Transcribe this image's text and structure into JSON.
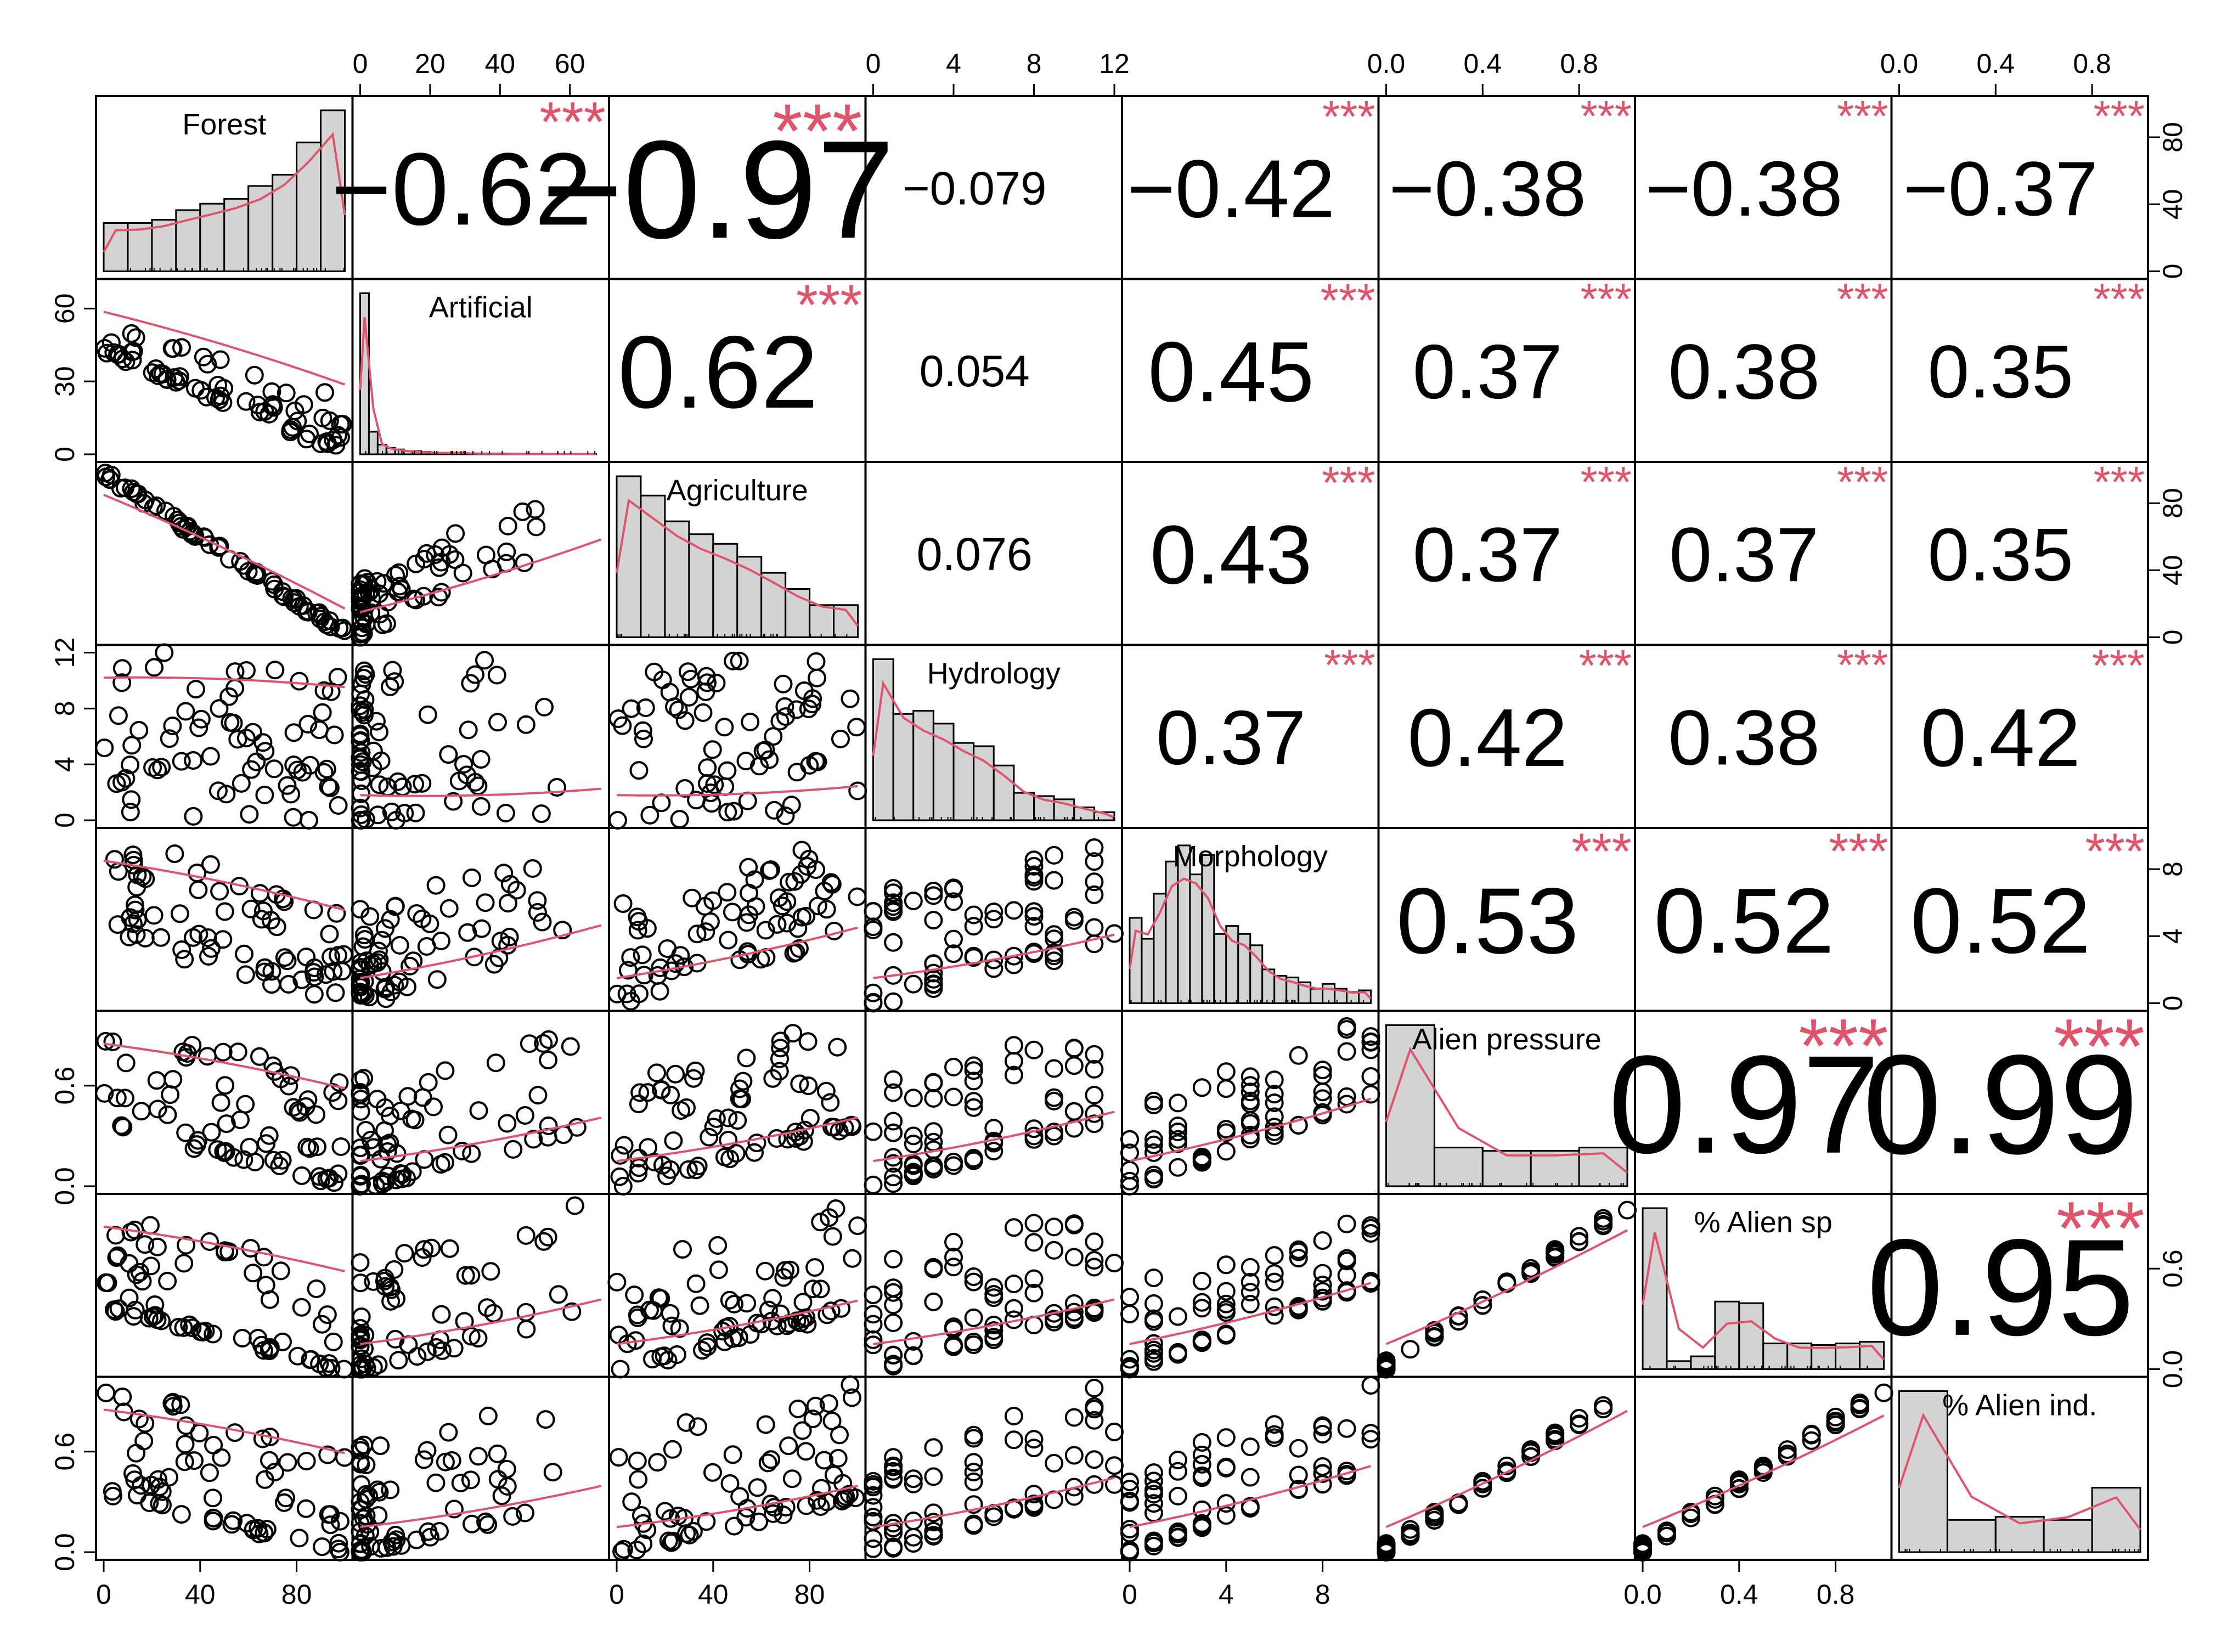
{
  "chart_data": {
    "type": "scatter",
    "title": "",
    "layout": "pairs-matrix",
    "variables": [
      "Forest",
      "Artificial",
      "Agriculture",
      "Hydrology",
      "Morphology",
      "Alien pressure",
      "% Alien sp",
      "% Alien ind."
    ],
    "axis_ranges": {
      "Forest": [
        0,
        100
      ],
      "Artificial": [
        0,
        69
      ],
      "Agriculture": [
        0,
        100
      ],
      "Hydrology": [
        0,
        12
      ],
      "Morphology": [
        0,
        10
      ],
      "Alien pressure": [
        0,
        1
      ],
      "% Alien sp": [
        0,
        1
      ],
      "% Alien ind.": [
        0,
        1
      ]
    },
    "tick_labels": {
      "top": {
        "Artificial": [
          "0",
          "20",
          "40",
          "60"
        ],
        "Hydrology": [
          "0",
          "4",
          "8",
          "12"
        ],
        "Alien pressure": [
          "0.0",
          "0.4",
          "0.8"
        ],
        "% Alien ind.": [
          "0.0",
          "0.4",
          "0.8"
        ]
      },
      "bottom": {
        "Forest": [
          "0",
          "40",
          "80"
        ],
        "Agriculture": [
          "0",
          "40",
          "80"
        ],
        "Morphology": [
          "0",
          "4",
          "8"
        ],
        "% Alien sp": [
          "0.0",
          "0.4",
          "0.8"
        ]
      },
      "left": {
        "Artificial": [
          "0",
          "30",
          "60"
        ],
        "Hydrology": [
          "0",
          "4",
          "8",
          "12"
        ],
        "Alien pressure": [
          "0.0",
          "0.6"
        ],
        "% Alien ind.": [
          "0.0",
          "0.6"
        ]
      },
      "right": {
        "Forest": [
          "0",
          "40",
          "80"
        ],
        "Agriculture": [
          "0",
          "40",
          "80"
        ],
        "Morphology": [
          "0",
          "4",
          "8"
        ],
        "% Alien sp": [
          "0.0",
          "0.6"
        ]
      }
    },
    "histograms": {
      "Forest": {
        "bins": [
          0,
          10,
          20,
          30,
          40,
          50,
          60,
          70,
          80,
          90,
          100
        ],
        "counts": [
          30,
          30,
          32,
          38,
          42,
          45,
          53,
          60,
          80,
          100
        ]
      },
      "Artificial": {
        "bins": [
          0,
          2.5,
          5,
          7.5,
          10,
          12.5,
          15,
          17.5,
          20,
          22.5,
          25,
          27.5,
          30,
          32.5,
          35,
          37.5,
          40,
          42.5,
          45,
          47.5,
          50,
          52.5,
          55,
          57.5,
          60,
          62.5,
          65,
          67.5
        ],
        "counts": [
          100,
          14,
          6,
          4,
          3,
          2,
          2,
          1.5,
          1,
          1,
          1,
          1,
          0.5,
          0.5,
          0.5,
          0.5,
          0.5,
          0.3,
          0.3,
          0.3,
          0.3,
          0.2,
          0.2,
          0.2,
          0.2,
          0.2,
          0.2
        ]
      },
      "Agriculture": {
        "bins": [
          0,
          10,
          20,
          30,
          40,
          50,
          60,
          70,
          80,
          90,
          100
        ],
        "counts": [
          100,
          88,
          72,
          64,
          58,
          50,
          40,
          30,
          20,
          20
        ]
      },
      "Hydrology": {
        "bins": [
          0,
          1,
          2,
          3,
          4,
          5,
          6,
          7,
          8,
          9,
          10,
          11,
          12
        ],
        "counts": [
          100,
          66,
          68,
          60,
          48,
          46,
          34,
          17,
          15,
          13,
          8,
          5
        ]
      },
      "Morphology": {
        "bins": [
          0,
          0.5,
          1,
          1.5,
          2,
          2.5,
          3,
          3.5,
          4,
          4.5,
          5,
          5.5,
          6,
          6.5,
          7,
          7.5,
          8,
          8.5,
          9,
          9.5,
          10
        ],
        "counts": [
          53,
          40,
          68,
          88,
          98,
          80,
          92,
          43,
          48,
          43,
          36,
          21,
          17,
          16,
          13,
          9,
          12,
          9,
          7,
          8
        ]
      },
      "Alien pressure": {
        "bins": [
          0,
          0.2,
          0.4,
          0.6,
          0.8,
          1
        ],
        "counts": [
          100,
          24,
          22,
          22,
          24
        ]
      },
      "% Alien sp": {
        "bins": [
          0,
          0.1,
          0.2,
          0.3,
          0.4,
          0.5,
          0.6,
          0.7,
          0.8,
          0.9,
          1
        ],
        "counts": [
          100,
          5,
          8,
          42,
          41,
          16,
          16,
          15,
          16,
          17
        ]
      },
      "% Alien ind.": {
        "bins": [
          0,
          0.2,
          0.4,
          0.6,
          0.8,
          1
        ],
        "counts": [
          100,
          20,
          22,
          20,
          40
        ]
      }
    },
    "correlations": [
      {
        "row": "Forest",
        "col": "Artificial",
        "r": "-0.62",
        "stars": "***"
      },
      {
        "row": "Forest",
        "col": "Agriculture",
        "r": "-0.97",
        "stars": "***"
      },
      {
        "row": "Forest",
        "col": "Hydrology",
        "r": "-0.079",
        "stars": ""
      },
      {
        "row": "Forest",
        "col": "Morphology",
        "r": "-0.42",
        "stars": "***"
      },
      {
        "row": "Forest",
        "col": "Alien pressure",
        "r": "-0.38",
        "stars": "***"
      },
      {
        "row": "Forest",
        "col": "% Alien sp",
        "r": "-0.38",
        "stars": "***"
      },
      {
        "row": "Forest",
        "col": "% Alien ind.",
        "r": "-0.37",
        "stars": "***"
      },
      {
        "row": "Artificial",
        "col": "Agriculture",
        "r": "0.62",
        "stars": "***"
      },
      {
        "row": "Artificial",
        "col": "Hydrology",
        "r": "0.054",
        "stars": ""
      },
      {
        "row": "Artificial",
        "col": "Morphology",
        "r": "0.45",
        "stars": "***"
      },
      {
        "row": "Artificial",
        "col": "Alien pressure",
        "r": "0.37",
        "stars": "***"
      },
      {
        "row": "Artificial",
        "col": "% Alien sp",
        "r": "0.38",
        "stars": "***"
      },
      {
        "row": "Artificial",
        "col": "% Alien ind.",
        "r": "0.35",
        "stars": "***"
      },
      {
        "row": "Agriculture",
        "col": "Hydrology",
        "r": "0.076",
        "stars": ""
      },
      {
        "row": "Agriculture",
        "col": "Morphology",
        "r": "0.43",
        "stars": "***"
      },
      {
        "row": "Agriculture",
        "col": "Alien pressure",
        "r": "0.37",
        "stars": "***"
      },
      {
        "row": "Agriculture",
        "col": "% Alien sp",
        "r": "0.37",
        "stars": "***"
      },
      {
        "row": "Agriculture",
        "col": "% Alien ind.",
        "r": "0.35",
        "stars": "***"
      },
      {
        "row": "Hydrology",
        "col": "Morphology",
        "r": "0.37",
        "stars": "***"
      },
      {
        "row": "Hydrology",
        "col": "Alien pressure",
        "r": "0.42",
        "stars": "***"
      },
      {
        "row": "Hydrology",
        "col": "% Alien sp",
        "r": "0.38",
        "stars": "***"
      },
      {
        "row": "Hydrology",
        "col": "% Alien ind.",
        "r": "0.42",
        "stars": "***"
      },
      {
        "row": "Morphology",
        "col": "Alien pressure",
        "r": "0.53",
        "stars": "***"
      },
      {
        "row": "Morphology",
        "col": "% Alien sp",
        "r": "0.52",
        "stars": "***"
      },
      {
        "row": "Morphology",
        "col": "% Alien ind.",
        "r": "0.52",
        "stars": "***"
      },
      {
        "row": "Alien pressure",
        "col": "% Alien sp",
        "r": "0.97",
        "stars": "***"
      },
      {
        "row": "Alien pressure",
        "col": "% Alien ind.",
        "r": "0.99",
        "stars": "***"
      },
      {
        "row": "% Alien sp",
        "col": "% Alien ind.",
        "r": "0.95",
        "stars": "***"
      }
    ],
    "smooth_color": "#df536b",
    "star_color": "#df536b",
    "hist_fill": "#d3d3d3",
    "point_style": "open-circle",
    "grid": false
  }
}
